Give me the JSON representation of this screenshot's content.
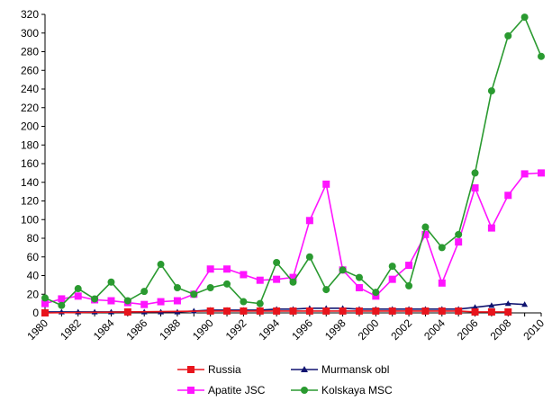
{
  "chart_data": {
    "type": "line",
    "title": "",
    "xlabel": "",
    "ylabel": "",
    "ylim": [
      0,
      320
    ],
    "yticks": [
      0,
      20,
      40,
      60,
      80,
      100,
      120,
      140,
      160,
      180,
      200,
      220,
      240,
      260,
      280,
      300,
      320
    ],
    "xlim": [
      1980,
      2010
    ],
    "xticks": [
      1980,
      1982,
      1984,
      1986,
      1988,
      1990,
      1992,
      1994,
      1996,
      1998,
      2000,
      2002,
      2004,
      2006,
      2008,
      2010
    ],
    "grid": false,
    "legend_position": "bottom",
    "series": [
      {
        "name": "Russia",
        "color": "#e8141c",
        "marker": "square",
        "x": [
          1980,
          1985,
          1990,
          1991,
          1992,
          1993,
          1994,
          1995,
          1996,
          1997,
          1998,
          1999,
          2000,
          2001,
          2002,
          2003,
          2004,
          2005,
          2006,
          2007,
          2008
        ],
        "y": [
          0,
          1,
          2,
          2,
          2,
          2,
          2,
          2,
          2,
          2,
          2,
          2,
          2,
          2,
          2,
          2,
          2,
          2,
          1,
          1,
          1
        ]
      },
      {
        "name": "Murmansk obl",
        "color": "#101470",
        "marker": "triangle",
        "x": [
          1980,
          1981,
          1982,
          1983,
          1984,
          1985,
          1986,
          1987,
          1988,
          1989,
          1990,
          1991,
          1992,
          1993,
          1994,
          1995,
          1996,
          1997,
          1998,
          1999,
          2000,
          2001,
          2002,
          2003,
          2004,
          2005,
          2006,
          2007,
          2008,
          2009
        ],
        "y": [
          1,
          1,
          1,
          1,
          1,
          1,
          1,
          1,
          1,
          2,
          3,
          3,
          3,
          3,
          4,
          4,
          5,
          5,
          5,
          4,
          4,
          4,
          4,
          4,
          4,
          4,
          6,
          8,
          10,
          9
        ]
      },
      {
        "name": "Apatite JSC",
        "color": "#ff14ff",
        "marker": "square",
        "x": [
          1980,
          1981,
          1982,
          1983,
          1984,
          1985,
          1986,
          1987,
          1988,
          1989,
          1990,
          1991,
          1992,
          1993,
          1994,
          1995,
          1996,
          1997,
          1998,
          1999,
          2000,
          2001,
          2002,
          2003,
          2004,
          2005,
          2006,
          2007,
          2008,
          2009,
          2010
        ],
        "y": [
          10,
          15,
          18,
          14,
          13,
          11,
          9,
          12,
          13,
          20,
          47,
          47,
          41,
          35,
          36,
          38,
          99,
          138,
          46,
          27,
          18,
          36,
          51,
          84,
          32,
          76,
          134,
          91,
          126,
          149,
          150
        ]
      },
      {
        "name": "Kolskaya MSC",
        "color": "#2a9a30",
        "marker": "circle",
        "x": [
          1980,
          1981,
          1982,
          1983,
          1984,
          1985,
          1986,
          1987,
          1988,
          1989,
          1990,
          1991,
          1992,
          1993,
          1994,
          1995,
          1996,
          1997,
          1998,
          1999,
          2000,
          2001,
          2002,
          2003,
          2004,
          2005,
          2006,
          2007,
          2008,
          2009,
          2010
        ],
        "y": [
          16,
          8,
          26,
          15,
          33,
          13,
          23,
          52,
          27,
          20,
          27,
          31,
          12,
          10,
          54,
          33,
          60,
          25,
          46,
          38,
          22,
          50,
          29,
          92,
          70,
          84,
          150,
          238,
          297,
          317,
          275
        ]
      }
    ]
  }
}
